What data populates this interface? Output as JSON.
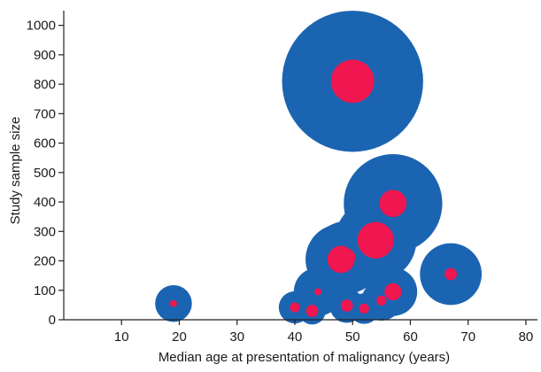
{
  "chart_data": {
    "type": "scatter",
    "title": "",
    "xlabel": "Median age at presentation of malignancy (years)",
    "ylabel": "Study sample size",
    "xlim": [
      0,
      82
    ],
    "ylim": [
      0,
      1050
    ],
    "x_ticks": [
      10,
      20,
      30,
      40,
      50,
      60,
      70,
      80
    ],
    "x_tick_labels": [
      "10",
      "20",
      "30",
      "40",
      "50",
      "60",
      "70",
      "80"
    ],
    "y_ticks": [
      0,
      100,
      200,
      300,
      400,
      500,
      600,
      700,
      800,
      900,
      1000
    ],
    "y_tick_labels": [
      "0",
      "100",
      "200",
      "300",
      "400",
      "500",
      "600",
      "700",
      "800",
      "900",
      "1000"
    ],
    "grid": false,
    "colors": {
      "outer_bubble": "#1b64b1",
      "inner_bubble": "#f0164f"
    },
    "points": [
      {
        "x": 19,
        "y": 55,
        "outer": 55,
        "inner": 2
      },
      {
        "x": 40,
        "y": 42,
        "outer": 42,
        "inner": 4
      },
      {
        "x": 43,
        "y": 30,
        "outer": 30,
        "inner": 6
      },
      {
        "x": 44,
        "y": 95,
        "outer": 95,
        "inner": 2
      },
      {
        "x": 48,
        "y": 205,
        "outer": 205,
        "inner": 30
      },
      {
        "x": 49,
        "y": 212,
        "outer": 212,
        "inner": 12
      },
      {
        "x": 49,
        "y": 48,
        "outer": 48,
        "inner": 6
      },
      {
        "x": 50,
        "y": 810,
        "outer": 810,
        "inner": 76
      },
      {
        "x": 52,
        "y": 38,
        "outer": 38,
        "inner": 4
      },
      {
        "x": 54,
        "y": 270,
        "outer": 270,
        "inner": 54
      },
      {
        "x": 55,
        "y": 65,
        "outer": 65,
        "inner": 4
      },
      {
        "x": 57,
        "y": 395,
        "outer": 395,
        "inner": 30
      },
      {
        "x": 57,
        "y": 95,
        "outer": 95,
        "inner": 12
      },
      {
        "x": 67,
        "y": 155,
        "outer": 155,
        "inner": 6
      }
    ]
  }
}
